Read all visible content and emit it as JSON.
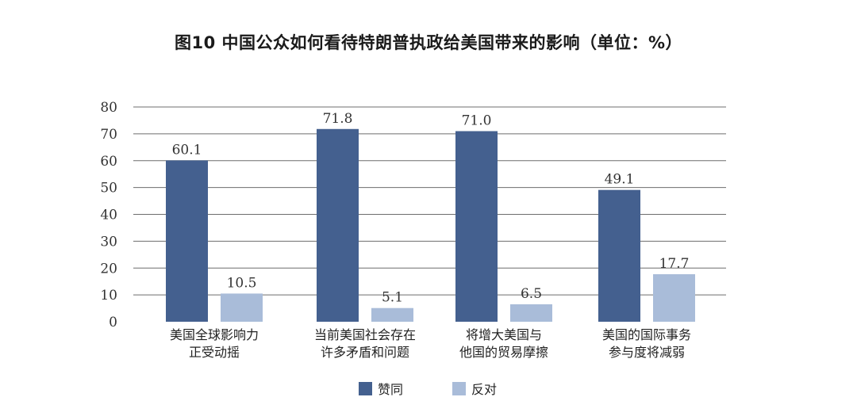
{
  "chart_data": {
    "type": "bar",
    "title": "图10  中国公众如何看待特朗普执政给美国带来的影响（单位：%）",
    "categories": [
      [
        "美国全球影响力",
        "正受动摇"
      ],
      [
        "当前美国社会存在",
        "许多矛盾和问题"
      ],
      [
        "将增大美国与",
        "他国的贸易摩擦"
      ],
      [
        "美国的国际事务",
        "参与度将减弱"
      ]
    ],
    "series": [
      {
        "name": "赞同",
        "color": "#44608f",
        "values": [
          60.1,
          71.8,
          71.0,
          49.1
        ]
      },
      {
        "name": "反对",
        "color": "#a9bcd9",
        "values": [
          10.5,
          5.1,
          6.5,
          17.7
        ]
      }
    ],
    "data_labels": [
      [
        "60.1",
        "71.8",
        "71.0",
        "49.1"
      ],
      [
        "10.5",
        "5.1",
        "6.5",
        "17.7"
      ]
    ],
    "ylim": [
      0,
      80
    ],
    "yticks": [
      0,
      10,
      20,
      30,
      40,
      50,
      60,
      70,
      80
    ],
    "xlabel": "",
    "ylabel": "",
    "grid": true,
    "gridline_color": "#6d6d6d",
    "legend_position": "bottom-center"
  }
}
